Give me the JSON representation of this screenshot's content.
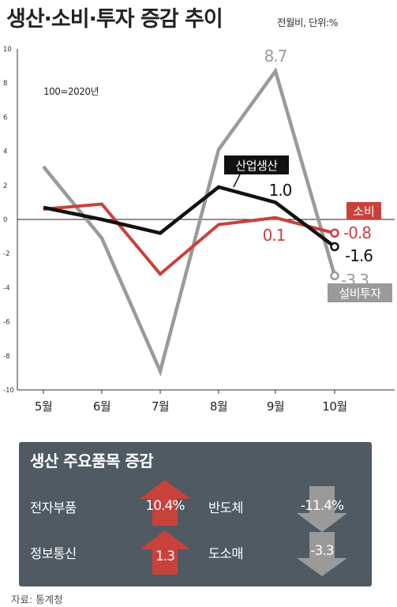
{
  "title": "생산·소비·투자 증감 추이",
  "unit_note": "전월비, 단위:%",
  "base_note": "100=2020년",
  "chart_data": {
    "type": "line",
    "categories": [
      "5월",
      "6월",
      "7월",
      "8월",
      "9월",
      "10월"
    ],
    "ylim": [
      -10,
      10
    ],
    "yticks": [
      "10",
      "8",
      "6",
      "4",
      "2",
      "0",
      "-2",
      "-4",
      "-6",
      "-8",
      "-10"
    ],
    "grid": false,
    "series": [
      {
        "name": "설비투자",
        "color": "#9a9a9a",
        "values": [
          3.1,
          -1.1,
          -8.9,
          4.1,
          8.7,
          -3.3
        ]
      },
      {
        "name": "소비",
        "color": "#c9413b",
        "values": [
          0.6,
          0.9,
          -3.2,
          -0.3,
          0.1,
          -0.8
        ]
      },
      {
        "name": "산업생산",
        "color": "#111111",
        "values": [
          0.7,
          0.0,
          -0.8,
          1.9,
          1.0,
          -1.6
        ]
      }
    ],
    "data_labels": {
      "investment_peak": "8.7",
      "investment_last": "-3.3",
      "consumption_sep": "0.1",
      "consumption_last": "-0.8",
      "production_sep": "1.0",
      "production_last": "-1.6"
    }
  },
  "panel": {
    "title": "생산 주요품목 증감",
    "items": [
      {
        "label": "전자부품",
        "value": "10.4%",
        "direction": "up"
      },
      {
        "label": "반도체",
        "value": "-11.4%",
        "direction": "down"
      },
      {
        "label": "정보통신",
        "value": "1.3",
        "direction": "up"
      },
      {
        "label": "도소매",
        "value": "-3.3",
        "direction": "down"
      }
    ]
  },
  "source": "자료: 통계청"
}
